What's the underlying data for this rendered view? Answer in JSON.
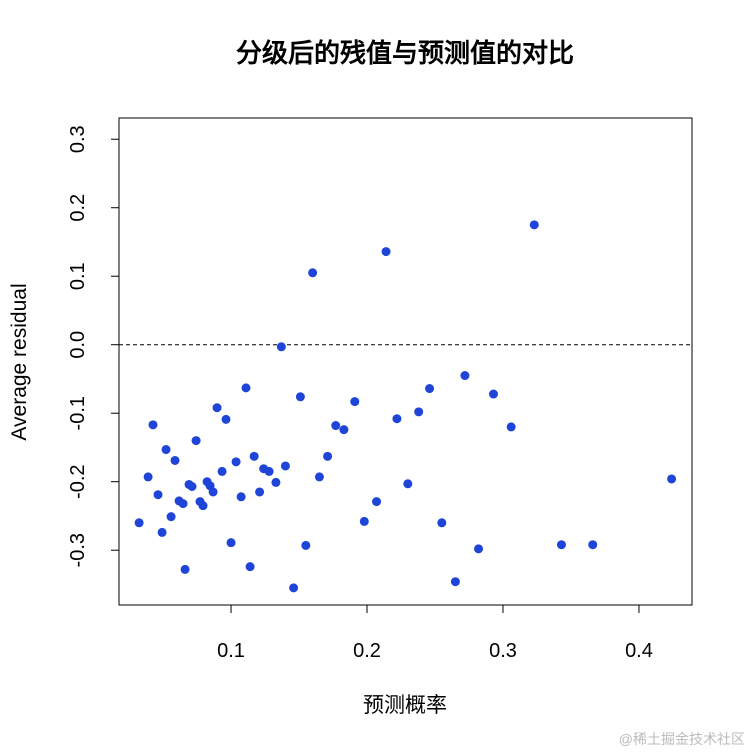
{
  "chart_data": {
    "type": "scatter",
    "title": "分级后的残值与预测值的对比",
    "x_label": "预测概率",
    "y_label": "Average residual",
    "watermark": "@稀土掘金技术社区",
    "color": "#1f45d8",
    "hline": 0,
    "xlim": [
      0.0176,
      0.439
    ],
    "ylim": [
      -0.38,
      0.331
    ],
    "xticks": [
      0.1,
      0.2,
      0.3,
      0.4
    ],
    "yticks": [
      -0.3,
      -0.2,
      -0.1,
      {
        "value": 0,
        "label": "0.0"
      },
      0.1,
      0.2,
      0.3
    ],
    "series": [
      {
        "x": [
          0.0324,
          0.039,
          0.0426,
          0.0463,
          0.0493,
          0.0522,
          0.0559,
          0.0588,
          0.0618,
          0.0647,
          0.0662,
          0.0691,
          0.0713,
          0.0743,
          0.0772,
          0.0794,
          0.0824,
          0.0846,
          0.0868,
          0.0897,
          0.0934,
          0.0963,
          0.1,
          0.1037,
          0.1074,
          0.111,
          0.114,
          0.117,
          0.121,
          0.124,
          0.128,
          0.133,
          0.137,
          0.14,
          0.146,
          0.151,
          0.155,
          0.16,
          0.165,
          0.171,
          0.177,
          0.183,
          0.191,
          0.198,
          0.207,
          0.214,
          0.222,
          0.23,
          0.238,
          0.246,
          0.255,
          0.265,
          0.272,
          0.282,
          0.293,
          0.306,
          0.323,
          0.343,
          0.366,
          0.424
        ],
        "values": [
          -0.26,
          -0.193,
          -0.117,
          -0.219,
          -0.274,
          -0.153,
          -0.251,
          -0.169,
          -0.228,
          -0.232,
          -0.328,
          -0.204,
          -0.207,
          -0.14,
          -0.229,
          -0.235,
          -0.2,
          -0.206,
          -0.215,
          -0.092,
          -0.185,
          -0.109,
          -0.289,
          -0.171,
          -0.222,
          -0.063,
          -0.324,
          -0.163,
          -0.215,
          -0.181,
          -0.185,
          -0.201,
          -0.003,
          -0.177,
          -0.355,
          -0.076,
          -0.293,
          0.105,
          -0.193,
          -0.163,
          -0.118,
          -0.124,
          -0.083,
          -0.258,
          -0.229,
          0.136,
          -0.108,
          -0.203,
          -0.098,
          -0.064,
          -0.26,
          -0.346,
          -0.045,
          -0.298,
          -0.072,
          -0.12,
          0.175,
          -0.292,
          -0.292,
          -0.196
        ]
      }
    ]
  }
}
